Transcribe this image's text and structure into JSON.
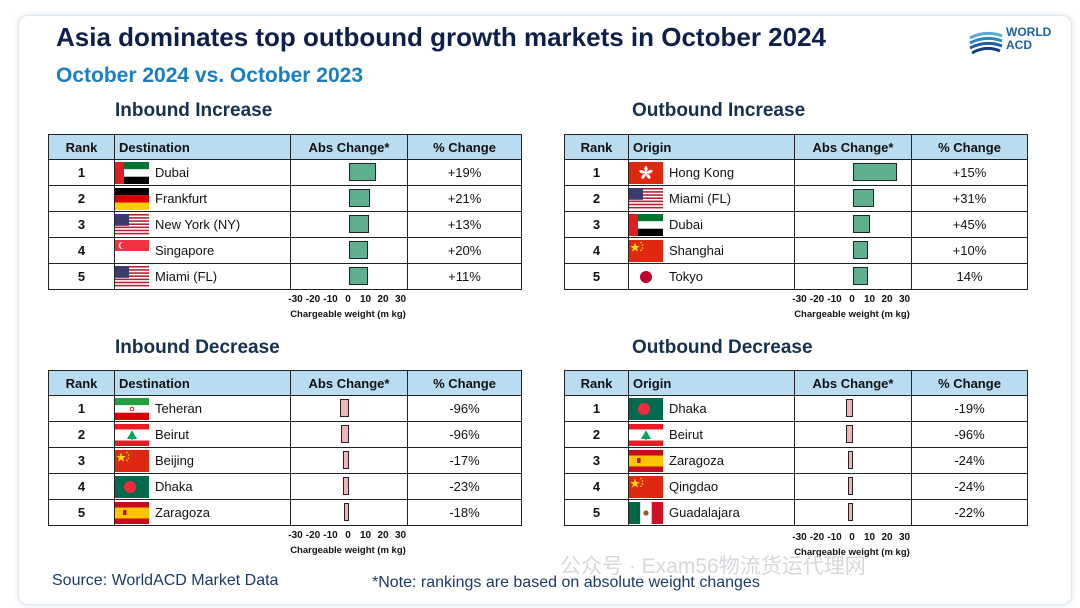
{
  "title": "Asia dominates top outbound growth markets in October 2024",
  "subtitle": "October 2024 vs. October 2023",
  "logo": {
    "line1": "WORLD",
    "line2": "ACD"
  },
  "source": "Source: WorldACD Market Data",
  "note": "*Note: rankings are based on absolute weight changes",
  "watermark": "公众号 · Exam56物流货运代理网",
  "colors": {
    "header_bg": "#b9dcf0",
    "increase_bar": "#5fb08f",
    "decrease_bar": "#f2b3b7",
    "title": "#0d1f4a",
    "subtitle": "#1a7fc1"
  },
  "chart_data": [
    {
      "type": "bar",
      "title": "Inbound Increase",
      "headers": [
        "Rank",
        "Destination",
        "Abs Change*",
        "% Change"
      ],
      "xlabel": "Chargeable weight (m kg)",
      "xlim": [
        -30,
        30
      ],
      "ticks": [
        "-30",
        "-20",
        "-10",
        "0",
        "10",
        "20",
        "30"
      ],
      "rows": [
        {
          "rank": "1",
          "name": "Dubai",
          "flag": "uae-flag",
          "abs_change": 14,
          "pct": "+19%"
        },
        {
          "rank": "2",
          "name": "Frankfurt",
          "flag": "germany-flag",
          "abs_change": 11,
          "pct": "+21%"
        },
        {
          "rank": "3",
          "name": "New York (NY)",
          "flag": "usa-flag",
          "abs_change": 10.5,
          "pct": "+13%"
        },
        {
          "rank": "4",
          "name": "Singapore",
          "flag": "singapore-flag",
          "abs_change": 10,
          "pct": "+20%"
        },
        {
          "rank": "5",
          "name": "Miami (FL)",
          "flag": "usa-flag",
          "abs_change": 10,
          "pct": "+11%"
        }
      ]
    },
    {
      "type": "bar",
      "title": "Outbound Increase",
      "headers": [
        "Rank",
        "Origin",
        "Abs Change*",
        "% Change"
      ],
      "xlabel": "Chargeable weight (m kg)",
      "xlim": [
        -30,
        30
      ],
      "ticks": [
        "-30",
        "-20",
        "-10",
        "0",
        "10",
        "20",
        "30"
      ],
      "rows": [
        {
          "rank": "1",
          "name": "Hong Kong",
          "flag": "hongkong-flag",
          "abs_change": 23,
          "pct": "+15%"
        },
        {
          "rank": "2",
          "name": "Miami (FL)",
          "flag": "usa-flag",
          "abs_change": 11,
          "pct": "+31%"
        },
        {
          "rank": "3",
          "name": "Dubai",
          "flag": "uae-flag",
          "abs_change": 9,
          "pct": "+45%"
        },
        {
          "rank": "4",
          "name": "Shanghai",
          "flag": "china-flag",
          "abs_change": 8,
          "pct": "+10%"
        },
        {
          "rank": "5",
          "name": "Tokyo",
          "flag": "japan-flag",
          "abs_change": 8,
          "pct": "14%"
        }
      ]
    },
    {
      "type": "bar",
      "title": "Inbound Decrease",
      "headers": [
        "Rank",
        "Destination",
        "Abs Change*",
        "% Change"
      ],
      "xlabel": "Chargeable weight (m kg)",
      "xlim": [
        -30,
        30
      ],
      "ticks": [
        "-30",
        "-20",
        "-10",
        "0",
        "10",
        "20",
        "30"
      ],
      "rows": [
        {
          "rank": "1",
          "name": "Teheran",
          "flag": "iran-flag",
          "abs_change": -4.5,
          "pct": "-96%"
        },
        {
          "rank": "2",
          "name": "Beirut",
          "flag": "lebanon-flag",
          "abs_change": -4,
          "pct": "-96%"
        },
        {
          "rank": "3",
          "name": "Beijing",
          "flag": "china-flag",
          "abs_change": -3,
          "pct": "-17%"
        },
        {
          "rank": "4",
          "name": "Dhaka",
          "flag": "bangladesh-flag",
          "abs_change": -3,
          "pct": "-23%"
        },
        {
          "rank": "5",
          "name": "Zaragoza",
          "flag": "spain-flag",
          "abs_change": -2.5,
          "pct": "-18%"
        }
      ]
    },
    {
      "type": "bar",
      "title": "Outbound Decrease",
      "headers": [
        "Rank",
        "Origin",
        "Abs Change*",
        "% Change"
      ],
      "xlabel": "Chargeable weight (m kg)",
      "xlim": [
        -30,
        30
      ],
      "ticks": [
        "-30",
        "-20",
        "-10",
        "0",
        "10",
        "20",
        "30"
      ],
      "rows": [
        {
          "rank": "1",
          "name": "Dhaka",
          "flag": "bangladesh-flag",
          "abs_change": -3.5,
          "pct": "-19%"
        },
        {
          "rank": "2",
          "name": "Beirut",
          "flag": "lebanon-flag",
          "abs_change": -3.5,
          "pct": "-96%"
        },
        {
          "rank": "3",
          "name": "Zaragoza",
          "flag": "spain-flag",
          "abs_change": -2.5,
          "pct": "-24%"
        },
        {
          "rank": "4",
          "name": "Qingdao",
          "flag": "china-flag",
          "abs_change": -2.5,
          "pct": "-24%"
        },
        {
          "rank": "5",
          "name": "Guadalajara",
          "flag": "mexico-flag",
          "abs_change": -2.5,
          "pct": "-22%"
        }
      ]
    }
  ]
}
